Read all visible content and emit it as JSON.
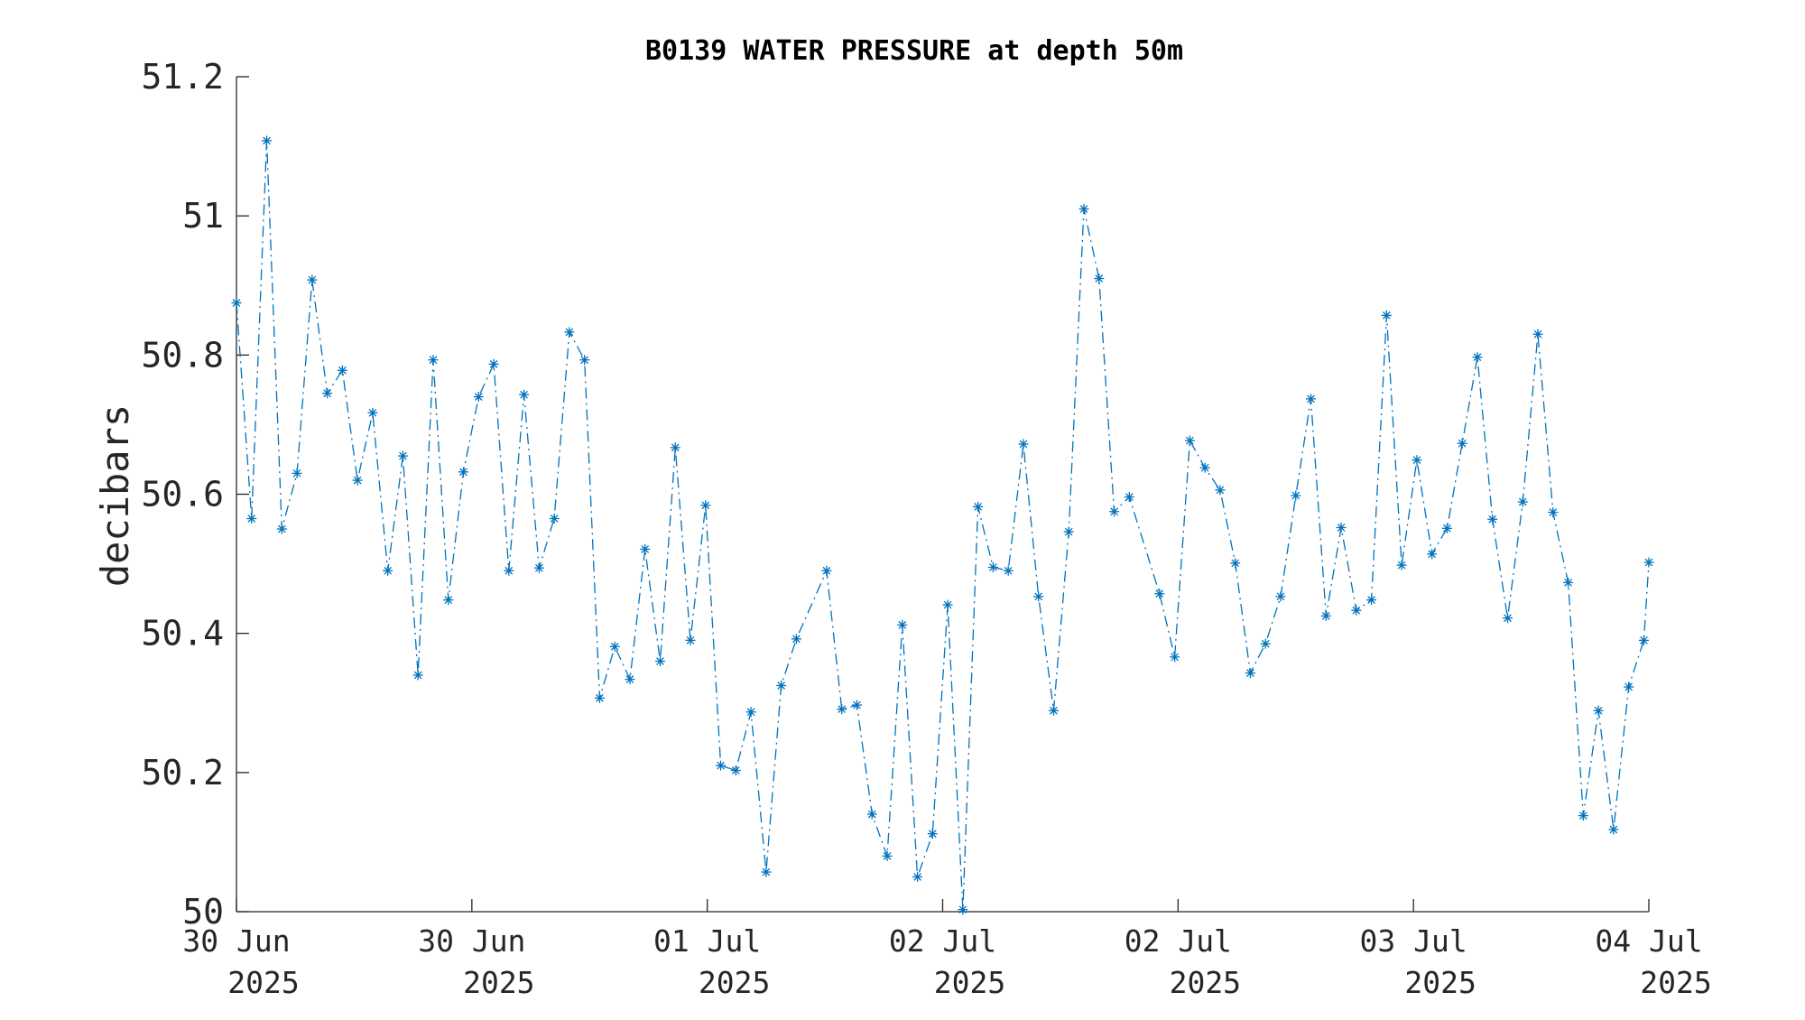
{
  "chart_data": {
    "type": "line",
    "title": "B0139 WATER PRESSURE at depth 50m",
    "xlabel": "",
    "ylabel": "decibars",
    "ylim": [
      50,
      51.2
    ],
    "yticks": [
      "50",
      "50.2",
      "50.4",
      "50.6",
      "50.8",
      "51",
      "51.2"
    ],
    "xticks": [
      {
        "line1": "30 Jun",
        "line2": "2025"
      },
      {
        "line1": "30 Jun",
        "line2": "2025"
      },
      {
        "line1": "01 Jul",
        "line2": "2025"
      },
      {
        "line1": "02 Jul",
        "line2": "2025"
      },
      {
        "line1": "02 Jul",
        "line2": "2025"
      },
      {
        "line1": "03 Jul",
        "line2": "2025"
      },
      {
        "line1": "04 Jul",
        "line2": "2025"
      }
    ],
    "line_style": "dash-dot",
    "marker": "asterisk",
    "color": "#0072BD",
    "grid": false,
    "series": [
      {
        "points": [
          [
            0.0,
            50.875
          ],
          [
            0.0643,
            50.565
          ],
          [
            0.1286,
            51.108
          ],
          [
            0.1929,
            50.55
          ],
          [
            0.2571,
            50.63
          ],
          [
            0.3214,
            50.908
          ],
          [
            0.3857,
            50.745
          ],
          [
            0.45,
            50.778
          ],
          [
            0.5143,
            50.62
          ],
          [
            0.5786,
            50.717
          ],
          [
            0.6429,
            50.49
          ],
          [
            0.7071,
            50.655
          ],
          [
            0.7714,
            50.34
          ],
          [
            0.8357,
            50.793
          ],
          [
            0.9,
            50.448
          ],
          [
            0.9643,
            50.632
          ],
          [
            1.0286,
            50.74
          ],
          [
            1.0929,
            50.787
          ],
          [
            1.1571,
            50.49
          ],
          [
            1.2214,
            50.743
          ],
          [
            1.2857,
            50.494
          ],
          [
            1.35,
            50.565
          ],
          [
            1.4143,
            50.833
          ],
          [
            1.4786,
            50.793
          ],
          [
            1.5429,
            50.307
          ],
          [
            1.6071,
            50.381
          ],
          [
            1.6714,
            50.334
          ],
          [
            1.7357,
            50.521
          ],
          [
            1.8,
            50.36
          ],
          [
            1.8643,
            50.667
          ],
          [
            1.9286,
            50.39
          ],
          [
            1.9929,
            50.584
          ],
          [
            2.0571,
            50.21
          ],
          [
            2.1214,
            50.203
          ],
          [
            2.1857,
            50.287
          ],
          [
            2.25,
            50.057
          ],
          [
            2.3143,
            50.325
          ],
          [
            2.3786,
            50.392
          ],
          [
            2.5071,
            50.49
          ],
          [
            2.5714,
            50.291
          ],
          [
            2.6357,
            50.297
          ],
          [
            2.7,
            50.14
          ],
          [
            2.7643,
            50.08
          ],
          [
            2.8286,
            50.412
          ],
          [
            2.8929,
            50.05
          ],
          [
            2.9571,
            50.112
          ],
          [
            3.0214,
            50.441
          ],
          [
            3.0857,
            50.003
          ],
          [
            3.15,
            50.582
          ],
          [
            3.2143,
            50.495
          ],
          [
            3.2786,
            50.49
          ],
          [
            3.3429,
            50.672
          ],
          [
            3.4071,
            50.453
          ],
          [
            3.4714,
            50.289
          ],
          [
            3.5357,
            50.546
          ],
          [
            3.6,
            51.01
          ],
          [
            3.6643,
            50.91
          ],
          [
            3.7286,
            50.575
          ],
          [
            3.7929,
            50.596
          ],
          [
            3.9214,
            50.457
          ],
          [
            3.9857,
            50.366
          ],
          [
            4.05,
            50.677
          ],
          [
            4.1143,
            50.638
          ],
          [
            4.1786,
            50.606
          ],
          [
            4.2429,
            50.501
          ],
          [
            4.3071,
            50.343
          ],
          [
            4.3714,
            50.385
          ],
          [
            4.4357,
            50.453
          ],
          [
            4.5,
            50.598
          ],
          [
            4.5643,
            50.737
          ],
          [
            4.6286,
            50.425
          ],
          [
            4.6929,
            50.552
          ],
          [
            4.7571,
            50.433
          ],
          [
            4.8214,
            50.448
          ],
          [
            4.8857,
            50.857
          ],
          [
            4.95,
            50.498
          ],
          [
            5.0143,
            50.649
          ],
          [
            5.0786,
            50.514
          ],
          [
            5.1429,
            50.551
          ],
          [
            5.2071,
            50.673
          ],
          [
            5.2714,
            50.797
          ],
          [
            5.3357,
            50.564
          ],
          [
            5.4,
            50.422
          ],
          [
            5.4643,
            50.589
          ],
          [
            5.5286,
            50.83
          ],
          [
            5.5929,
            50.574
          ],
          [
            5.6571,
            50.473
          ],
          [
            5.7214,
            50.138
          ],
          [
            5.7857,
            50.289
          ],
          [
            5.85,
            50.118
          ],
          [
            5.9143,
            50.323
          ],
          [
            5.9786,
            50.39
          ],
          [
            6.0,
            50.502
          ]
        ]
      }
    ]
  }
}
